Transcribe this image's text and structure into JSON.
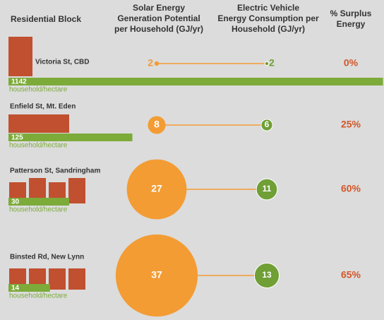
{
  "chart_data": {
    "type": "bubble",
    "columns": [
      "Residential Block",
      "Solar Energy Generation Potential per Household (GJ/yr)",
      "Electric Vehicle Energy Consumption per Household (GJ/yr)",
      "% Surplus Energy"
    ],
    "categories": [
      "Victoria St, CBD",
      "Enfield St, Mt. Eden",
      "Patterson St, Sandringham",
      "Binsted Rd, New Lynn"
    ],
    "density": {
      "unit_label": "household/hectare",
      "color": "#7cab3a",
      "values": [
        1142,
        125,
        30,
        14
      ]
    },
    "solar": {
      "color": "#f39c34",
      "values": [
        2,
        8,
        27,
        37
      ]
    },
    "ev": {
      "color": "#6f9f35",
      "values": [
        2,
        6,
        11,
        13
      ]
    },
    "surplus": {
      "color": "#d2562a",
      "values": [
        0,
        25,
        60,
        65
      ],
      "value_labels": [
        "0%",
        "25%",
        "60%",
        "65%"
      ]
    }
  }
}
